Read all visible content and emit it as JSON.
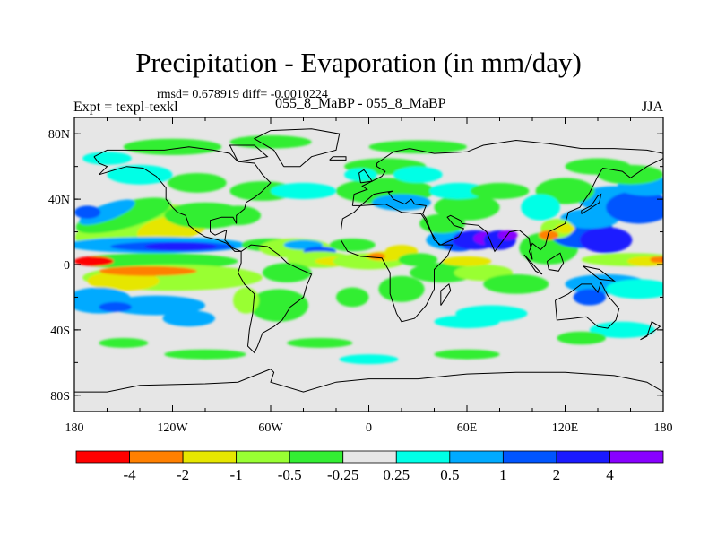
{
  "chart_data": {
    "type": "heatmap",
    "title": "Precipitation - Evaporation (in mm/day)",
    "stats": "rmsd= 0.678919 diff= -0.0010224",
    "experiment": "Expt = texpl-texkl",
    "case": "055_8_MaBP - 055_8_MaBP",
    "season": "JJA",
    "x_axis": {
      "range": [
        -180,
        180
      ],
      "ticks": [
        "180",
        "120W",
        "60W",
        "0",
        "60E",
        "120E",
        "180"
      ]
    },
    "y_axis": {
      "range": [
        -90,
        90
      ],
      "ticks": [
        "80N",
        "40N",
        "0",
        "40S",
        "80S"
      ]
    },
    "colorbar": {
      "levels": [
        "-4",
        "-2",
        "-1",
        "-0.5",
        "-0.25",
        "0.25",
        "0.5",
        "1",
        "2",
        "4"
      ],
      "colors": [
        "#ff0000",
        "#ff8000",
        "#e6e600",
        "#99ff33",
        "#33ee33",
        "#e6e6e6",
        "#00ffe6",
        "#00aaff",
        "#0055ff",
        "#1a1aff",
        "#8800ff"
      ]
    },
    "features": [
      {
        "name": "pacific-itcz-positive",
        "category": 9,
        "lon": [
          -160,
          -100
        ],
        "lat": [
          8,
          14
        ]
      },
      {
        "name": "east-pacific-negative",
        "category": 1,
        "lon": [
          -170,
          -130
        ],
        "lat": [
          -4,
          4
        ]
      },
      {
        "name": "indian-monsoon-positive",
        "category": 10,
        "lon": [
          60,
          95
        ],
        "lat": [
          8,
          22
        ]
      },
      {
        "name": "china-positive",
        "category": 9,
        "lon": [
          110,
          150
        ],
        "lat": [
          10,
          30
        ]
      },
      {
        "name": "west-pacific-negative",
        "category": 1,
        "lon": [
          160,
          180
        ],
        "lat": [
          -4,
          4
        ]
      }
    ]
  },
  "colors": {
    "land_outline": "#000000",
    "background": "#e6e6e6"
  }
}
